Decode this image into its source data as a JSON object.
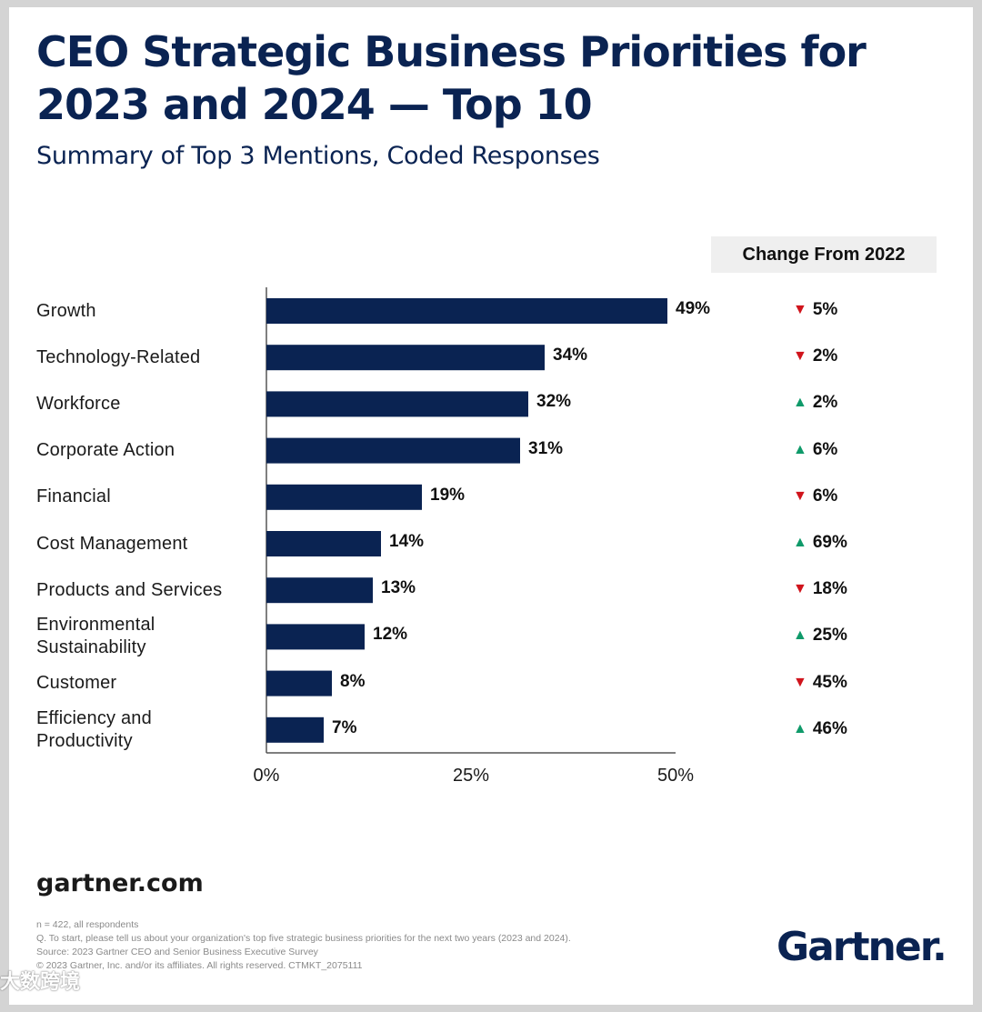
{
  "title": "CEO Strategic Business Priorities for 2023 and 2024 — Top 10",
  "subtitle": "Summary of Top 3 Mentions, Coded Responses",
  "change_header": "Change From 2022",
  "chart_data": {
    "type": "bar",
    "orientation": "horizontal",
    "title": "CEO Strategic Business Priorities for 2023 and 2024 — Top 10",
    "subtitle": "Summary of Top 3 Mentions, Coded Responses",
    "categories": [
      "Growth",
      "Technology-Related",
      "Workforce",
      "Corporate Action",
      "Financial",
      "Cost Management",
      "Products and Services",
      "Environmental Sustainability",
      "Customer",
      "Efficiency and Productivity"
    ],
    "category_lines": [
      [
        "Growth"
      ],
      [
        "Technology-Related"
      ],
      [
        "Workforce"
      ],
      [
        "Corporate Action"
      ],
      [
        "Financial"
      ],
      [
        "Cost Management"
      ],
      [
        "Products and Services"
      ],
      [
        "Environmental",
        "Sustainability"
      ],
      [
        "Customer"
      ],
      [
        "Efficiency and",
        "Productivity"
      ]
    ],
    "values": [
      49,
      34,
      32,
      31,
      19,
      14,
      13,
      12,
      8,
      7
    ],
    "value_labels": [
      "49%",
      "34%",
      "32%",
      "31%",
      "19%",
      "14%",
      "13%",
      "12%",
      "8%",
      "7%"
    ],
    "change_from_2022": [
      {
        "direction": "down",
        "label": "5%"
      },
      {
        "direction": "down",
        "label": "2%"
      },
      {
        "direction": "up",
        "label": "2%"
      },
      {
        "direction": "up",
        "label": "6%"
      },
      {
        "direction": "down",
        "label": "6%"
      },
      {
        "direction": "up",
        "label": "69%"
      },
      {
        "direction": "down",
        "label": "18%"
      },
      {
        "direction": "up",
        "label": "25%"
      },
      {
        "direction": "down",
        "label": "45%"
      },
      {
        "direction": "up",
        "label": "46%"
      }
    ],
    "xlim": [
      0,
      50
    ],
    "xticks": [
      0,
      25,
      50
    ],
    "xtick_labels": [
      "0%",
      "25%",
      "50%"
    ],
    "xlabel": "",
    "ylabel": "",
    "grid": false,
    "bar_color": "#0a2352",
    "down_color": "#d0141c",
    "up_color": "#0f9a6a"
  },
  "footer": {
    "site": "gartner.com",
    "lines": [
      "n = 422, all respondents",
      "Q. To start, please tell us about your organization's top five strategic business priorities for the next two years (2023 and 2024).",
      "Source: 2023 Gartner CEO and Senior Business Executive Survey",
      "© 2023 Gartner, Inc. and/or its affiliates. All rights reserved. CTMKT_2075111"
    ],
    "logo": "Gartner.",
    "watermark": "大数跨境"
  }
}
